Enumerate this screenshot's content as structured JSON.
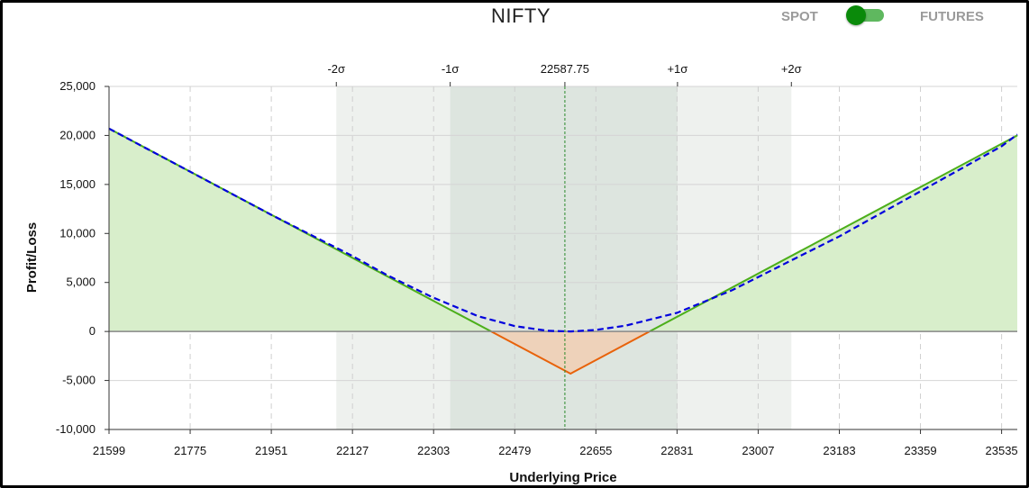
{
  "header": {
    "title": "NIFTY",
    "spot_label": "SPOT",
    "futures_label": "FUTURES"
  },
  "chart_data": {
    "type": "area",
    "xlabel": "Underlying Price",
    "ylabel": "Profit/Loss",
    "xlim": [
      21599,
      23569
    ],
    "ylim": [
      -10000,
      25000
    ],
    "x_ticks": [
      21599,
      21775,
      21951,
      22127,
      22303,
      22479,
      22655,
      22831,
      23007,
      23183,
      23359,
      23535
    ],
    "y_ticks": [
      -10000,
      -5000,
      0,
      5000,
      10000,
      15000,
      20000,
      25000
    ],
    "y_tick_labels": [
      "-10,000",
      "-5,000",
      "0",
      "5,000",
      "10,000",
      "15,000",
      "20,000",
      "25,000"
    ],
    "spot": 22587.75,
    "spot_label": "22587.75",
    "sigma_bands": [
      {
        "label": "-2σ",
        "x": 22092
      },
      {
        "label": "-1σ",
        "x": 22339
      },
      {
        "label": "+1σ",
        "x": 22832
      },
      {
        "label": "+2σ",
        "x": 23079
      }
    ],
    "series": [
      {
        "name": "",
        "style": "solid",
        "color_pos": "#4caf1a",
        "color_neg": "#e8620a",
        "x": [
          21599,
          22600,
          23569
        ],
        "y": [
          20700,
          -4300,
          20000
        ]
      },
      {
        "name": "",
        "style": "dashed",
        "color": "#0000dd",
        "x": [
          21599,
          21775,
          21951,
          22127,
          22200,
          22300,
          22400,
          22479,
          22550,
          22600,
          22655,
          22720,
          22831,
          22950,
          23007,
          23100,
          23183,
          23359,
          23535,
          23569
        ],
        "y": [
          20700,
          16300,
          11900,
          7700,
          5800,
          3500,
          1550,
          550,
          70,
          0,
          160,
          600,
          1900,
          4200,
          5550,
          7750,
          9700,
          14300,
          18900,
          20100
        ]
      }
    ],
    "colors": {
      "profit_fill": "#d8eecb",
      "loss_fill": "#eed2ba",
      "band_outer": "#eef1ee",
      "band_inner": "#dde5df",
      "spot_line": "#2a8a2a",
      "zero_line": "#888888"
    }
  }
}
